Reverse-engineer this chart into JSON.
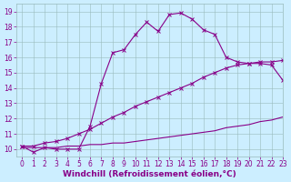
{
  "xlabel": "Windchill (Refroidissement éolien,°C)",
  "x": [
    0,
    1,
    2,
    3,
    4,
    5,
    6,
    7,
    8,
    9,
    10,
    11,
    12,
    13,
    14,
    15,
    16,
    17,
    18,
    19,
    20,
    21,
    22,
    23
  ],
  "line1": [
    10.2,
    9.8,
    10.1,
    10.0,
    10.0,
    10.0,
    11.5,
    14.3,
    16.3,
    16.5,
    17.5,
    18.3,
    17.7,
    18.8,
    18.9,
    18.5,
    17.8,
    17.5,
    16.0,
    15.7,
    15.6,
    15.6,
    15.5,
    14.5
  ],
  "line2": [
    10.2,
    10.2,
    10.4,
    10.5,
    10.7,
    11.0,
    11.3,
    11.7,
    12.1,
    12.4,
    12.8,
    13.1,
    13.4,
    13.7,
    14.0,
    14.3,
    14.7,
    15.0,
    15.3,
    15.5,
    15.6,
    15.7,
    15.7,
    15.8
  ],
  "line3": [
    10.1,
    10.1,
    10.1,
    10.1,
    10.2,
    10.2,
    10.3,
    10.3,
    10.4,
    10.4,
    10.5,
    10.6,
    10.7,
    10.8,
    10.9,
    11.0,
    11.1,
    11.2,
    11.4,
    11.5,
    11.6,
    11.8,
    11.9,
    12.1
  ],
  "line_color": "#880088",
  "bg_color": "#cceeff",
  "grid_color": "#99bbbb",
  "ylim": [
    9.5,
    19.5
  ],
  "xlim": [
    -0.5,
    23
  ],
  "yticks": [
    10,
    11,
    12,
    13,
    14,
    15,
    16,
    17,
    18,
    19
  ],
  "xticks": [
    0,
    1,
    2,
    3,
    4,
    5,
    6,
    7,
    8,
    9,
    10,
    11,
    12,
    13,
    14,
    15,
    16,
    17,
    18,
    19,
    20,
    21,
    22,
    23
  ],
  "xlabel_fontsize": 6.5,
  "tick_fontsize": 5.5
}
